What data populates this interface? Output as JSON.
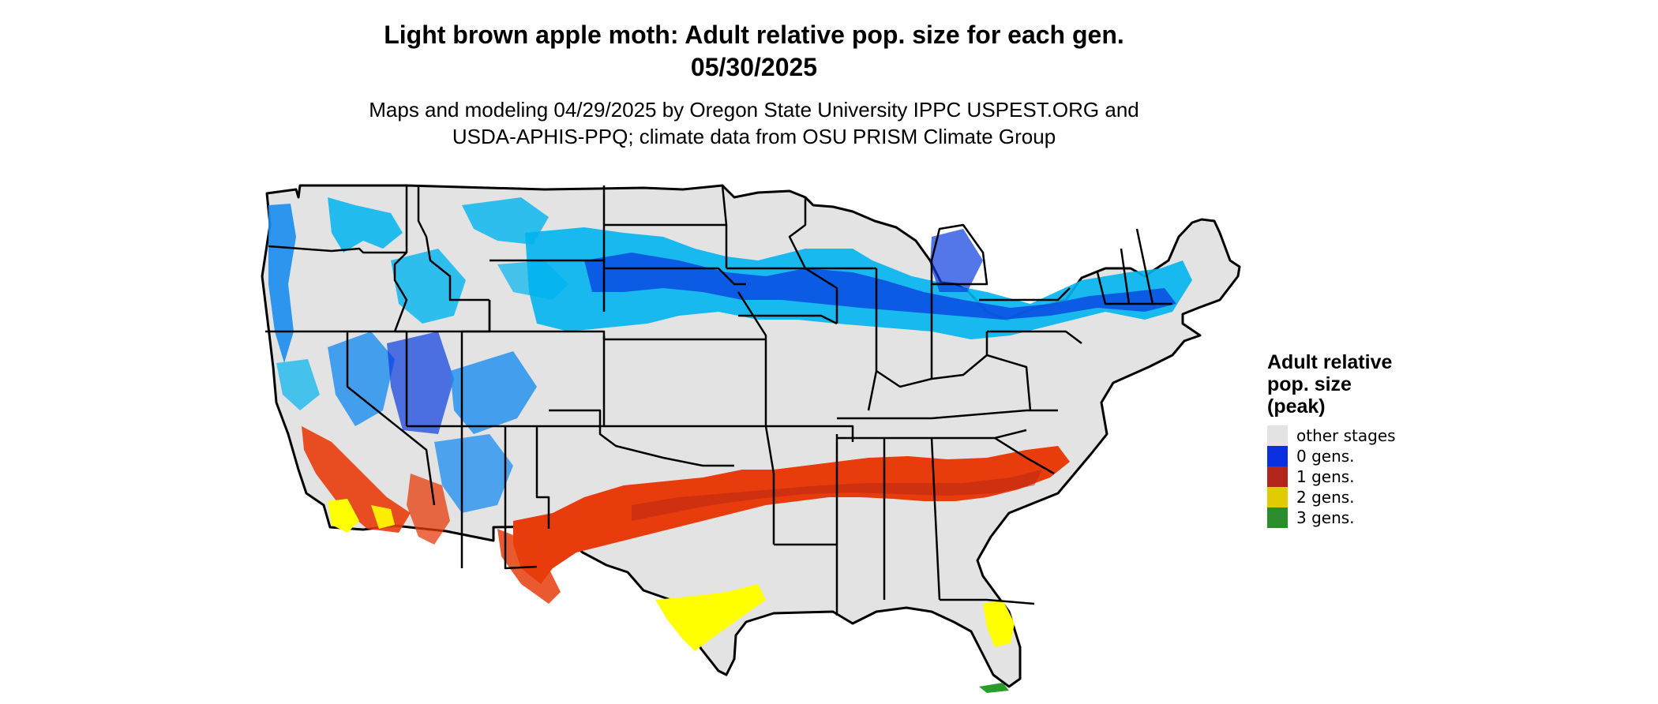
{
  "title_line1": "Light brown apple moth: Adult relative pop. size for each gen.",
  "title_line2": "05/30/2025",
  "subtitle_line1": "Maps and modeling 04/29/2025 by Oregon State University IPPC USPEST.ORG and",
  "subtitle_line2": "USDA-APHIS-PPQ; climate data from OSU PRISM Climate Group",
  "legend": {
    "title_line1": "Adult relative",
    "title_line2": "pop. size",
    "title_line3": "(peak)",
    "items": [
      {
        "label": "other stages",
        "color": "#e3e3e3"
      },
      {
        "label": "0 gens.",
        "color": "#0a2fe0"
      },
      {
        "label": "1 gens.",
        "color": "#b3241a"
      },
      {
        "label": "2 gens.",
        "color": "#e0cc00"
      },
      {
        "label": "3 gens.",
        "color": "#2a8c2a"
      }
    ]
  },
  "map_colors": {
    "background": "#e3e3e3",
    "border": "#000000",
    "light_blue": "#00b4f0",
    "mid_blue": "#1a8cf0",
    "dark_blue": "#0a3ce0",
    "orange_red": "#e83c0c",
    "dark_red": "#b32414",
    "yellow": "#ffff00",
    "green": "#2a9c2a"
  }
}
